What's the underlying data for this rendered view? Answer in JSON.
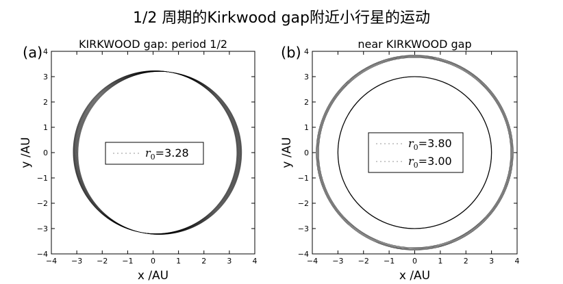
{
  "page_title": "1/2 周期的Kirkwood gap附近小行星的运动",
  "chart_data": [
    {
      "type": "scatter",
      "panel_label": "(a)",
      "title": "KIRKWOOD gap: period 1/2",
      "xlabel": "x  /AU",
      "ylabel": "y  /AU",
      "xlim": [
        -4,
        4
      ],
      "ylim": [
        -4,
        4
      ],
      "xticks": [
        -4,
        -3,
        -2,
        -1,
        0,
        1,
        2,
        3,
        4
      ],
      "yticks": [
        -4,
        -3,
        -2,
        -1,
        0,
        1,
        2,
        3,
        4
      ],
      "xtick_labels": [
        "−4",
        "−3",
        "−2",
        "−1",
        "0",
        "1",
        "2",
        "3",
        "4"
      ],
      "ytick_labels": [
        "−4",
        "−3",
        "−2",
        "−1",
        "0",
        "1",
        "2",
        "3",
        "4"
      ],
      "grid": false,
      "legend_placement": "center",
      "series": [
        {
          "name": "r0 = 3.28",
          "legend_symbol": "r",
          "legend_sub": "0",
          "legend_eq": "=",
          "legend_value": "3.28",
          "orbit": {
            "shape": "precessing-ellipse",
            "r_min": 3.0,
            "r_max": 3.45,
            "center_shift_x": 0.2,
            "precession_deg": 60
          }
        }
      ]
    },
    {
      "type": "scatter",
      "panel_label": "(b)",
      "title": "near KIRKWOOD gap",
      "xlabel": "x  /AU",
      "ylabel": "y  /AU",
      "xlim": [
        -4,
        4
      ],
      "ylim": [
        -4,
        4
      ],
      "xticks": [
        -4,
        -3,
        -2,
        -1,
        0,
        1,
        2,
        3,
        4
      ],
      "yticks": [
        -4,
        -3,
        -2,
        -1,
        0,
        1,
        2,
        3,
        4
      ],
      "xtick_labels": [
        "−4",
        "−3",
        "−2",
        "−1",
        "0",
        "1",
        "2",
        "3",
        "4"
      ],
      "ytick_labels": [
        "−4",
        "−3",
        "−2",
        "−1",
        "0",
        "1",
        "2",
        "3",
        "4"
      ],
      "grid": false,
      "legend_placement": "center",
      "series": [
        {
          "name": "r0 = 3.80",
          "legend_symbol": "r",
          "legend_sub": "0",
          "legend_eq": "=",
          "legend_value": "3.80",
          "orbit": {
            "shape": "circle",
            "r_min": 3.75,
            "r_max": 3.85
          }
        },
        {
          "name": "r0 = 3.00",
          "legend_symbol": "r",
          "legend_sub": "0",
          "legend_eq": "=",
          "legend_value": "3.00",
          "orbit": {
            "shape": "circle",
            "r_min": 2.99,
            "r_max": 3.01
          }
        }
      ]
    }
  ]
}
